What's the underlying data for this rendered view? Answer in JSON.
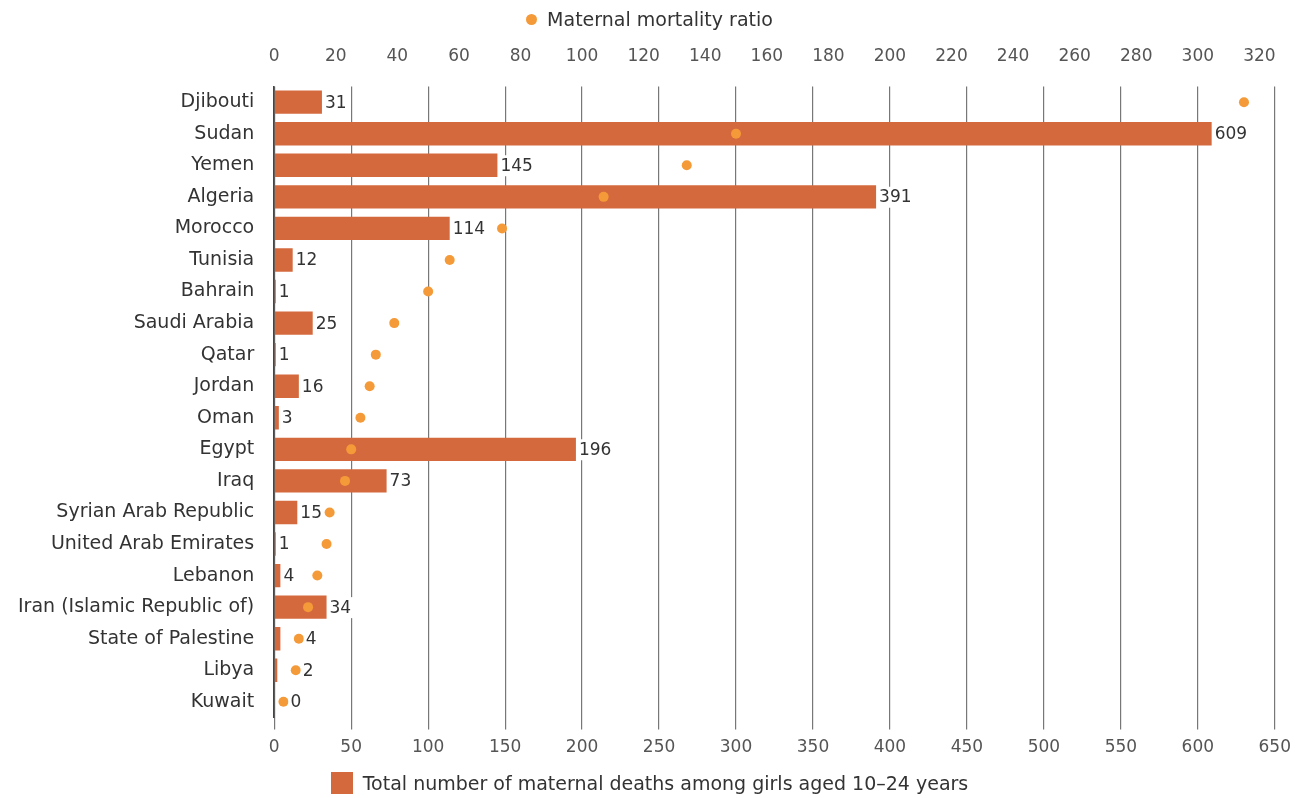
{
  "chart_data": {
    "type": "bar",
    "orientation": "horizontal",
    "categories": [
      "Djibouti",
      "Sudan",
      "Yemen",
      "Algeria",
      "Morocco",
      "Tunisia",
      "Bahrain",
      "Saudi Arabia",
      "Qatar",
      "Jordan",
      "Oman",
      "Egypt",
      "Iraq",
      "Syrian Arab Republic",
      "United Arab Emirates",
      "Lebanon",
      "Iran (Islamic Republic of)",
      "State of Palestine",
      "Libya",
      "Kuwait"
    ],
    "series": [
      {
        "name": "Total number of maternal deaths among girls aged 10–24 years",
        "color": "#d4693e",
        "values": [
          31,
          609,
          145,
          391,
          114,
          12,
          1,
          25,
          1,
          16,
          3,
          196,
          73,
          15,
          1,
          4,
          34,
          4,
          2,
          0
        ],
        "value_labels": [
          "31",
          "609",
          "145",
          "391",
          "114",
          "12",
          "1",
          "25",
          "1",
          "16",
          "3",
          "196",
          "73",
          "15",
          "1",
          "4",
          "34",
          "4",
          "2",
          "0"
        ]
      },
      {
        "name": "Maternal mortality ratio",
        "type": "scatter",
        "axis": "x2",
        "color": "#f59a38",
        "values": [
          315,
          150,
          134,
          107,
          74,
          57,
          50,
          39,
          33,
          31,
          28,
          25,
          23,
          18,
          17,
          14,
          11,
          8,
          7,
          3
        ]
      }
    ],
    "xlim": [
      0,
      650
    ],
    "xticks": [
      0,
      50,
      100,
      150,
      200,
      250,
      300,
      350,
      400,
      450,
      500,
      550,
      600,
      650
    ],
    "x2lim": [
      0,
      325
    ],
    "x2ticks": [
      0,
      20,
      40,
      60,
      80,
      100,
      120,
      140,
      160,
      180,
      200,
      220,
      240,
      260,
      280,
      300,
      320
    ],
    "grid": "x",
    "legend": "bottom",
    "marker": "circle"
  }
}
